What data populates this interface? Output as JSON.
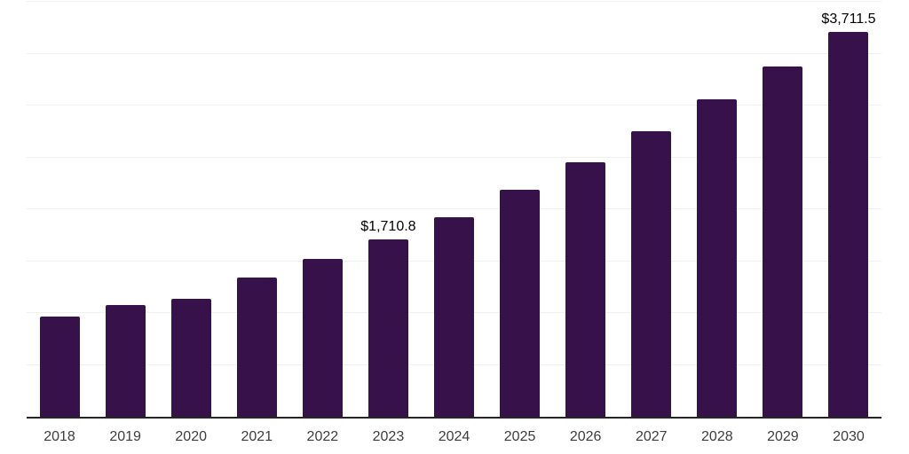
{
  "chart_data": {
    "type": "bar",
    "title": "",
    "xlabel": "",
    "ylabel": "",
    "categories": [
      "2018",
      "2019",
      "2020",
      "2021",
      "2022",
      "2023",
      "2024",
      "2025",
      "2026",
      "2027",
      "2028",
      "2029",
      "2030"
    ],
    "values": [
      965,
      1075,
      1135,
      1340,
      1520,
      1710.8,
      1920,
      2185,
      2450,
      2750,
      3060,
      3380,
      3711.5
    ],
    "bar_labels": [
      "",
      "",
      "",
      "",
      "",
      "$1,710.8",
      "",
      "",
      "",
      "",
      "",
      "",
      "$3,711.5"
    ],
    "labeled_points": [
      {
        "category": "2023",
        "value": 1710.8,
        "label": "$1,710.8"
      },
      {
        "category": "2030",
        "value": 3711.5,
        "label": "$3,711.5"
      }
    ],
    "ylim": [
      0,
      4000
    ],
    "gridline_step": 500,
    "grid": "horizontal",
    "legend_position": "none",
    "y_axis_tick_labels_visible": false
  },
  "style": {
    "bar_color": "#36114A",
    "axis_line_color": "#262626",
    "gridline_color": "#f0f0f0",
    "x_label_color": "#3d3d3d",
    "data_label_color": "#000000",
    "background_color": "#ffffff"
  }
}
